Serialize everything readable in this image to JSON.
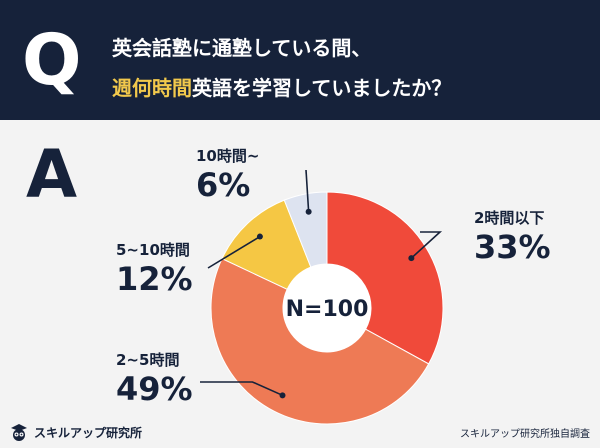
{
  "header": {
    "q_letter": "Q",
    "line1": "英会話塾に通塾している間、",
    "line2_highlight": "週何時間",
    "line2_rest": "英語を学習していましたか？"
  },
  "answer_letter": "A",
  "center_label": "N=100",
  "footer": {
    "logo_text": "スキルアップ研究所",
    "credit": "スキルアップ研究所独自調査"
  },
  "colors": {
    "header_bg": "#16223a",
    "highlight": "#f2c94c",
    "text": "#16223a"
  },
  "chart_data": {
    "type": "pie",
    "donut": true,
    "slices": [
      {
        "label": "2時間以下",
        "value": 33,
        "display": "33%",
        "color": "#f04a3a"
      },
      {
        "label": "2~5時間",
        "value": 49,
        "display": "49%",
        "color": "#ee7a55"
      },
      {
        "label": "5~10時間",
        "value": 12,
        "display": "12%",
        "color": "#f5c744"
      },
      {
        "label": "10時間~",
        "value": 6,
        "display": "6%",
        "color": "#dde3f0"
      }
    ]
  }
}
